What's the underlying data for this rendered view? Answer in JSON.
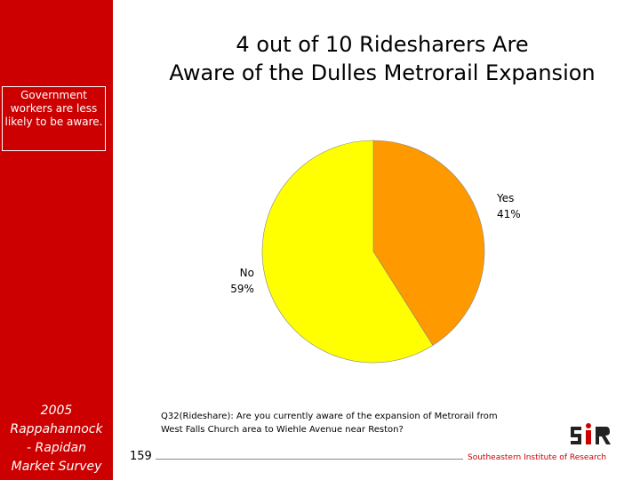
{
  "chart_data": {
    "type": "pie",
    "title_lines": [
      "4 out of 10 Ridesharers Are",
      "Aware of the Dulles Metrorail Expansion"
    ],
    "categories": [
      "Yes",
      "No"
    ],
    "values": [
      41,
      59
    ],
    "value_labels": [
      "41%",
      "59%"
    ],
    "colors": [
      "#ff9900",
      "#ffff00"
    ]
  },
  "sidebar": {
    "note": "Government workers are less likely to be aware.",
    "survey_lines": [
      "2005",
      "Rappahannock",
      "- Rapidan",
      "Market Survey"
    ]
  },
  "footnote_lines": [
    "Q32(Rideshare): Are you currently aware of the expansion of Metrorail from",
    "West Falls Church area to Wiehle Avenue near Reston?"
  ],
  "footer": {
    "page": "159",
    "organization": "Southeastern Institute of Research"
  }
}
